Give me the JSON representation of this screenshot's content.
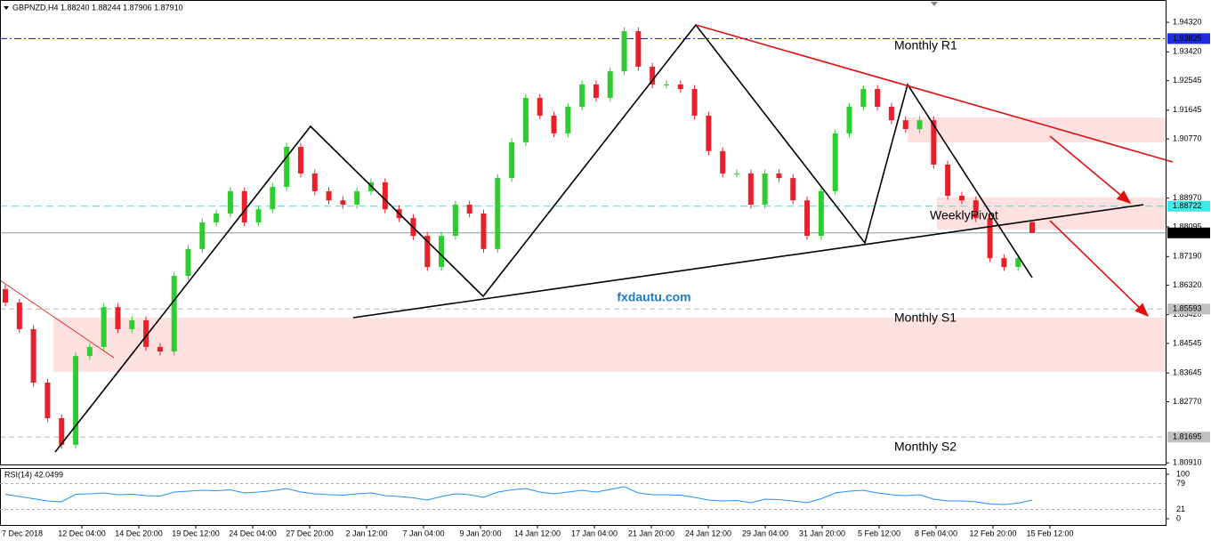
{
  "chart_data": {
    "type": "candlestick",
    "title": "GBPNZD,H4  1.88240 1.88244 1.87906 1.87910",
    "watermark": "fxdautu.com",
    "up_color": "#2ecc2e",
    "down_color": "#e8202a",
    "ylim": [
      1.8086,
      1.95
    ],
    "yticks": [
      {
        "value": 1.9432,
        "label": "1.94320"
      },
      {
        "value": 1.9342,
        "label": "1.93420"
      },
      {
        "value": 1.92545,
        "label": "1.92545"
      },
      {
        "value": 1.91645,
        "label": "1.91645"
      },
      {
        "value": 1.9077,
        "label": "1.90770"
      },
      {
        "value": 1.8897,
        "label": "1.88970"
      },
      {
        "value": 1.88095,
        "label": "1.88095"
      },
      {
        "value": 1.8719,
        "label": "1.87190"
      },
      {
        "value": 1.8632,
        "label": "1.86320"
      },
      {
        "value": 1.8542,
        "label": "1.85420"
      },
      {
        "value": 1.84545,
        "label": "1.84545"
      },
      {
        "value": 1.83645,
        "label": "1.83645"
      },
      {
        "value": 1.8277,
        "label": "1.82770"
      },
      {
        "value": 1.8091,
        "label": "1.80910"
      }
    ],
    "xtick_labels": [
      "7 Dec 2018",
      "12 Dec 04:00",
      "14 Dec 20:00",
      "19 Dec 12:00",
      "24 Dec 04:00",
      "27 Dec 20:00",
      "2 Jan 12:00",
      "7 Jan 04:00",
      "9 Jan 20:00",
      "14 Jan 12:00",
      "17 Jan 04:00",
      "21 Jan 20:00",
      "24 Jan 12:00",
      "29 Jan 04:00",
      "31 Jan 20:00",
      "5 Feb 12:00",
      "8 Feb 04:00",
      "12 Feb 20:00",
      "15 Feb 12:00"
    ],
    "open": [
      1.862,
      1.8579,
      1.8498,
      1.8335,
      1.8227,
      1.8146,
      1.8416,
      1.8444,
      1.8565,
      1.8498,
      1.8525,
      1.8444,
      1.843,
      1.866,
      1.8742,
      1.8823,
      1.885,
      1.8918,
      1.8823,
      1.8863,
      1.8931,
      1.9053,
      1.8972,
      1.8918,
      1.889,
      1.8877,
      1.8918,
      1.8945,
      1.8863,
      1.8836,
      1.8782,
      1.8687,
      1.8782,
      1.8877,
      1.885,
      1.8742,
      1.8958,
      1.9067,
      1.9202,
      1.9148,
      1.9094,
      1.9175,
      1.9243,
      1.9202,
      1.9283,
      1.9405,
      1.9297,
      1.9243,
      1.9243,
      1.9229,
      1.9148,
      1.904,
      1.8972,
      1.8972,
      1.8877,
      1.8972,
      1.8958,
      1.889,
      1.8782,
      1.8918,
      1.9094,
      1.9175,
      1.9229,
      1.9175,
      1.9134,
      1.9107,
      1.9134,
      1.8999,
      1.8904,
      1.889,
      1.8836,
      1.8714,
      1.8687,
      1.8824
    ],
    "high": [
      1.8632,
      1.8591,
      1.851,
      1.8347,
      1.8239,
      1.8428,
      1.8456,
      1.8577,
      1.8577,
      1.8537,
      1.8537,
      1.8456,
      1.8672,
      1.8754,
      1.8835,
      1.8862,
      1.893,
      1.893,
      1.8875,
      1.8943,
      1.9065,
      1.9065,
      1.8984,
      1.893,
      1.8902,
      1.893,
      1.8957,
      1.8957,
      1.8875,
      1.8848,
      1.8794,
      1.8794,
      1.8889,
      1.8889,
      1.8862,
      1.897,
      1.9079,
      1.9214,
      1.9214,
      1.916,
      1.9187,
      1.9255,
      1.9255,
      1.9295,
      1.9417,
      1.9417,
      1.9309,
      1.9255,
      1.9255,
      1.9241,
      1.916,
      1.9052,
      1.8984,
      1.8984,
      1.8984,
      1.8984,
      1.897,
      1.8902,
      1.893,
      1.9106,
      1.9187,
      1.9241,
      1.9241,
      1.9187,
      1.9146,
      1.9146,
      1.9146,
      1.9011,
      1.8916,
      1.8902,
      1.8848,
      1.8726,
      1.8726,
      1.88244
    ],
    "low": [
      1.8567,
      1.8486,
      1.8323,
      1.8215,
      1.8134,
      1.8134,
      1.8404,
      1.8432,
      1.8486,
      1.8486,
      1.8432,
      1.8418,
      1.8418,
      1.8648,
      1.873,
      1.8811,
      1.8838,
      1.8811,
      1.8811,
      1.8851,
      1.8919,
      1.896,
      1.8906,
      1.8878,
      1.8865,
      1.8865,
      1.8906,
      1.8851,
      1.8824,
      1.877,
      1.8675,
      1.8675,
      1.877,
      1.8838,
      1.873,
      1.873,
      1.8946,
      1.9055,
      1.9136,
      1.9082,
      1.9082,
      1.9163,
      1.919,
      1.919,
      1.9271,
      1.9285,
      1.9231,
      1.9231,
      1.9217,
      1.9136,
      1.9028,
      1.896,
      1.896,
      1.8865,
      1.8865,
      1.8946,
      1.8878,
      1.877,
      1.877,
      1.8906,
      1.9082,
      1.9163,
      1.9163,
      1.9122,
      1.9095,
      1.9095,
      1.8987,
      1.8892,
      1.8878,
      1.8824,
      1.8702,
      1.8675,
      1.8675,
      1.87906
    ],
    "close": [
      1.8579,
      1.8498,
      1.8335,
      1.8227,
      1.8146,
      1.8416,
      1.8444,
      1.8565,
      1.8498,
      1.8525,
      1.8444,
      1.843,
      1.866,
      1.8742,
      1.8823,
      1.885,
      1.8918,
      1.8823,
      1.8863,
      1.8931,
      1.9053,
      1.8972,
      1.8918,
      1.889,
      1.8877,
      1.8918,
      1.8945,
      1.8863,
      1.8836,
      1.8782,
      1.8687,
      1.8782,
      1.8877,
      1.885,
      1.8742,
      1.8958,
      1.9067,
      1.9202,
      1.9148,
      1.9094,
      1.9175,
      1.9243,
      1.9202,
      1.9283,
      1.9405,
      1.9297,
      1.9243,
      1.9243,
      1.9229,
      1.9148,
      1.904,
      1.8972,
      1.8972,
      1.8877,
      1.8972,
      1.8958,
      1.889,
      1.8782,
      1.8918,
      1.9094,
      1.9175,
      1.9229,
      1.9175,
      1.9134,
      1.9107,
      1.9134,
      1.8999,
      1.8904,
      1.889,
      1.8836,
      1.8714,
      1.8687,
      1.8714,
      1.8791
    ],
    "levels": [
      {
        "name": "Monthly R1",
        "value": 1.93825,
        "label": "1.93825",
        "color": "#1010c0",
        "label_bg": "#1a2ee0",
        "label_fg": "#ffffff",
        "dash": "8 3 2 3",
        "name_color": "#1f2fd0"
      },
      {
        "name": "WeeklyPivot",
        "value": 1.88722,
        "label": "1.88722",
        "color": "#40e0e0",
        "label_bg": "#40e8e8",
        "label_fg": "#ffffff",
        "dash": "8 5",
        "name_color": "#30d8e8"
      },
      {
        "value": 1.8791,
        "label": "1.87910",
        "color": "#8a9a9a",
        "label_bg": "#000000",
        "label_fg": "#ffffff",
        "dash": "none"
      },
      {
        "name": "Monthly S1",
        "value": 1.85593,
        "label": "1.85593",
        "color": "#b8b8b8",
        "label_bg": "#c0c0c0",
        "label_fg": "#ffffff",
        "dash": "6 4",
        "name_color": "#c8c8c8"
      },
      {
        "name": "Monthly S2",
        "value": 1.81695,
        "label": "1.81695",
        "color": "#b8b8b8",
        "label_bg": "#c0c0c0",
        "label_fg": "#ffffff",
        "dash": "6 4",
        "name_color": "#c8c8c8"
      }
    ],
    "zones": [
      {
        "from": 1.8533,
        "to": 1.8368
      },
      {
        "from": 1.9142,
        "to": 1.9067
      },
      {
        "from": 1.8899,
        "to": 1.8801
      }
    ],
    "rsi": {
      "label": "RSI(14) 42.0499",
      "color": "#1e90ff",
      "ylim": [
        0,
        100
      ],
      "yticks": [
        100,
        79,
        21,
        0
      ],
      "values": [
        55,
        50,
        45,
        40,
        38,
        55,
        56,
        58,
        54,
        55,
        52,
        51,
        60,
        62,
        64,
        63,
        65,
        58,
        60,
        63,
        68,
        60,
        56,
        54,
        53,
        56,
        58,
        52,
        50,
        47,
        42,
        50,
        56,
        54,
        48,
        60,
        65,
        68,
        60,
        56,
        60,
        64,
        60,
        66,
        72,
        58,
        54,
        54,
        53,
        48,
        42,
        40,
        41,
        36,
        44,
        43,
        40,
        36,
        45,
        58,
        62,
        64,
        58,
        54,
        52,
        54,
        44,
        40,
        40,
        38,
        33,
        32,
        35,
        42.0499
      ]
    }
  }
}
